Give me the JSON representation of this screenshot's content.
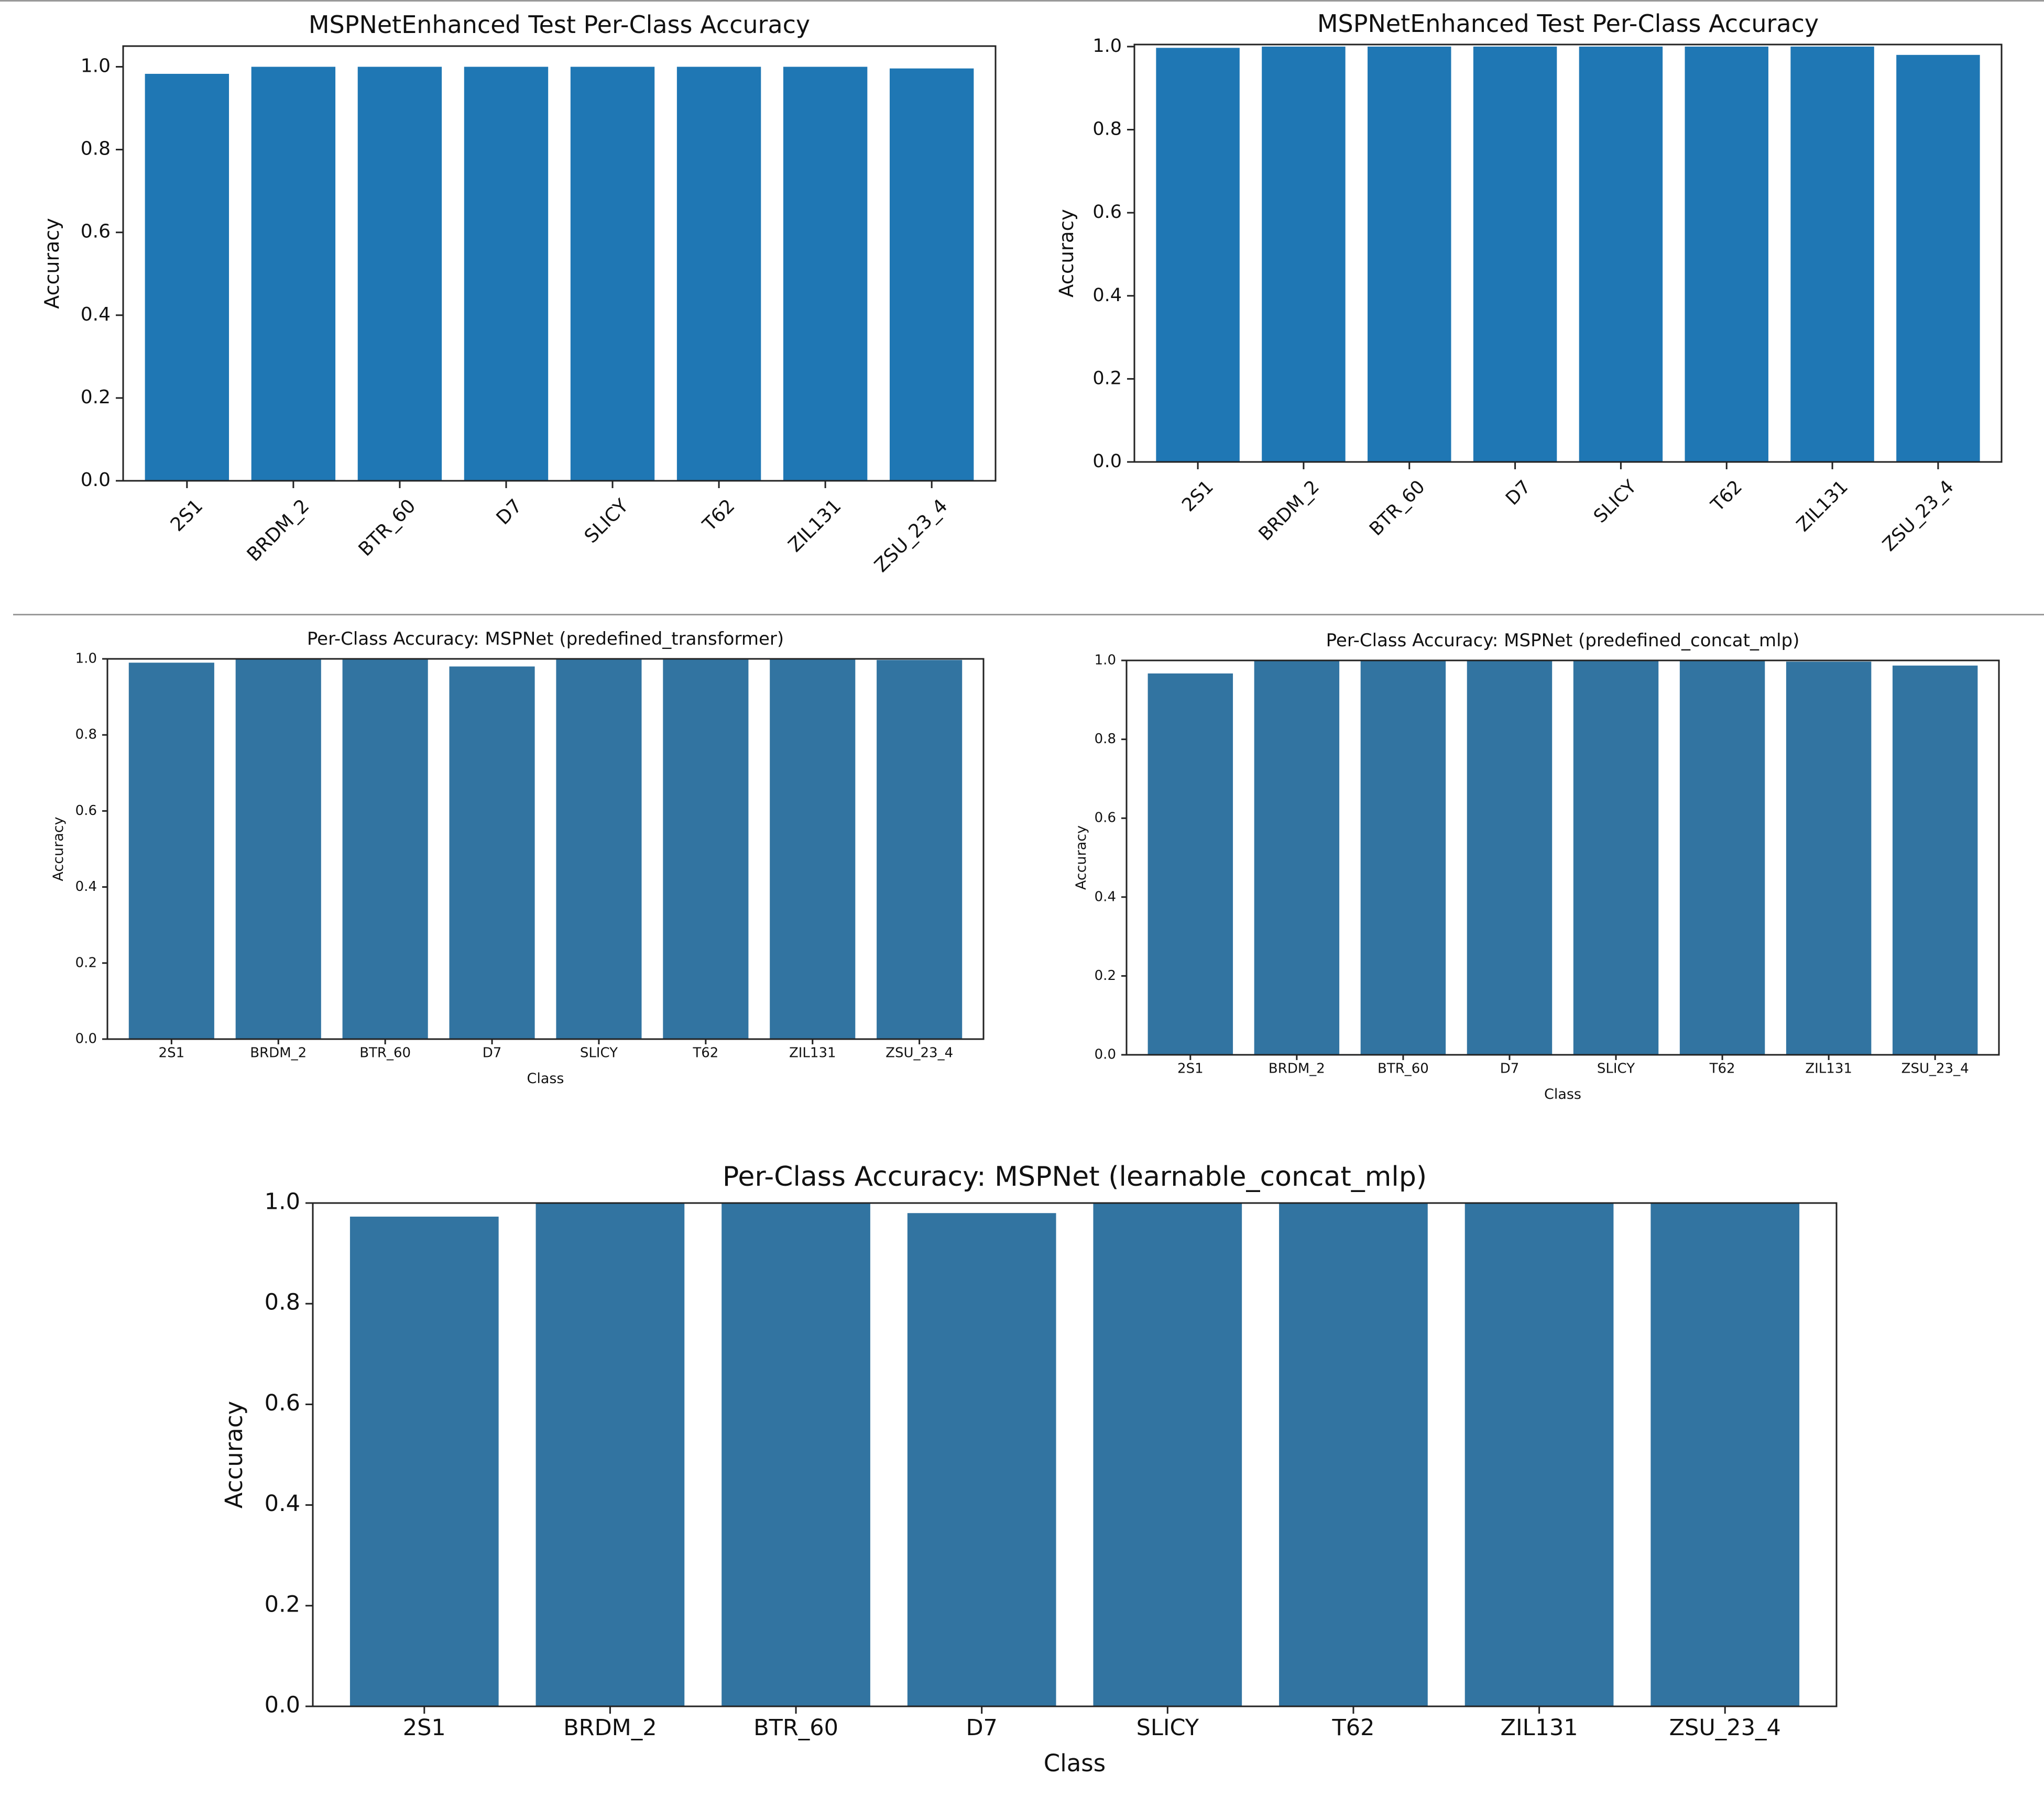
{
  "chart_data": [
    {
      "type": "bar",
      "title": "MSPNetEnhanced Test Per-Class Accuracy",
      "xlabel": "",
      "ylabel": "Accuracy",
      "categories": [
        "2S1",
        "BRDM_2",
        "BTR_60",
        "D7",
        "SLICY",
        "T62",
        "ZIL131",
        "ZSU_23_4"
      ],
      "values": [
        0.983,
        1.0,
        1.0,
        1.0,
        1.0,
        1.0,
        1.0,
        0.996
      ],
      "ylim": [
        0,
        1.05
      ],
      "yticks": [
        "0.0",
        "0.2",
        "0.4",
        "0.6",
        "0.8",
        "1.0"
      ],
      "xtick_rotation": "45 degrees",
      "bar_color": "#1f77b4",
      "grid": false
    },
    {
      "type": "bar",
      "title": "MSPNetEnhanced Test Per-Class Accuracy",
      "xlabel": "",
      "ylabel": "Accuracy",
      "categories": [
        "2S1",
        "BRDM_2",
        "BTR_60",
        "D7",
        "SLICY",
        "T62",
        "ZIL131",
        "ZSU_23_4"
      ],
      "values": [
        0.997,
        1.0,
        1.0,
        1.0,
        1.0,
        1.0,
        1.0,
        0.98
      ],
      "ylim": [
        0,
        1.005
      ],
      "yticks": [
        "0.0",
        "0.2",
        "0.4",
        "0.6",
        "0.8",
        "1.0"
      ],
      "xtick_rotation": "45 degrees",
      "bar_color": "#1f77b4",
      "grid": false
    },
    {
      "type": "bar",
      "title": "Per-Class Accuracy: MSPNet (predefined_transformer)",
      "xlabel": "Class",
      "ylabel": "Accuracy",
      "categories": [
        "2S1",
        "BRDM_2",
        "BTR_60",
        "D7",
        "SLICY",
        "T62",
        "ZIL131",
        "ZSU_23_4"
      ],
      "values": [
        0.99,
        1.0,
        1.0,
        0.98,
        1.0,
        1.0,
        1.0,
        0.997
      ],
      "ylim": [
        0,
        1.0
      ],
      "yticks": [
        "0.0",
        "0.2",
        "0.4",
        "0.6",
        "0.8",
        "1.0"
      ],
      "bar_color": "#3274a1",
      "grid": false
    },
    {
      "type": "bar",
      "title": "Per-Class Accuracy: MSPNet (predefined_concat_mlp)",
      "xlabel": "Class",
      "ylabel": "Accuracy",
      "categories": [
        "2S1",
        "BRDM_2",
        "BTR_60",
        "D7",
        "SLICY",
        "T62",
        "ZIL131",
        "ZSU_23_4"
      ],
      "values": [
        0.967,
        1.0,
        1.0,
        1.0,
        1.0,
        1.0,
        0.997,
        0.987
      ],
      "ylim": [
        0,
        1.0
      ],
      "yticks": [
        "0.0",
        "0.2",
        "0.4",
        "0.6",
        "0.8",
        "1.0"
      ],
      "bar_color": "#3274a1",
      "grid": false
    },
    {
      "type": "bar",
      "title": "Per-Class Accuracy: MSPNet (learnable_concat_mlp)",
      "xlabel": "Class",
      "ylabel": "Accuracy",
      "categories": [
        "2S1",
        "BRDM_2",
        "BTR_60",
        "D7",
        "SLICY",
        "T62",
        "ZIL131",
        "ZSU_23_4"
      ],
      "values": [
        0.973,
        1.0,
        1.0,
        0.98,
        1.0,
        1.0,
        1.0,
        1.0
      ],
      "ylim": [
        0,
        1.0
      ],
      "yticks": [
        "0.0",
        "0.2",
        "0.4",
        "0.6",
        "0.8",
        "1.0"
      ],
      "bar_color": "#3274a1",
      "grid": false
    }
  ]
}
